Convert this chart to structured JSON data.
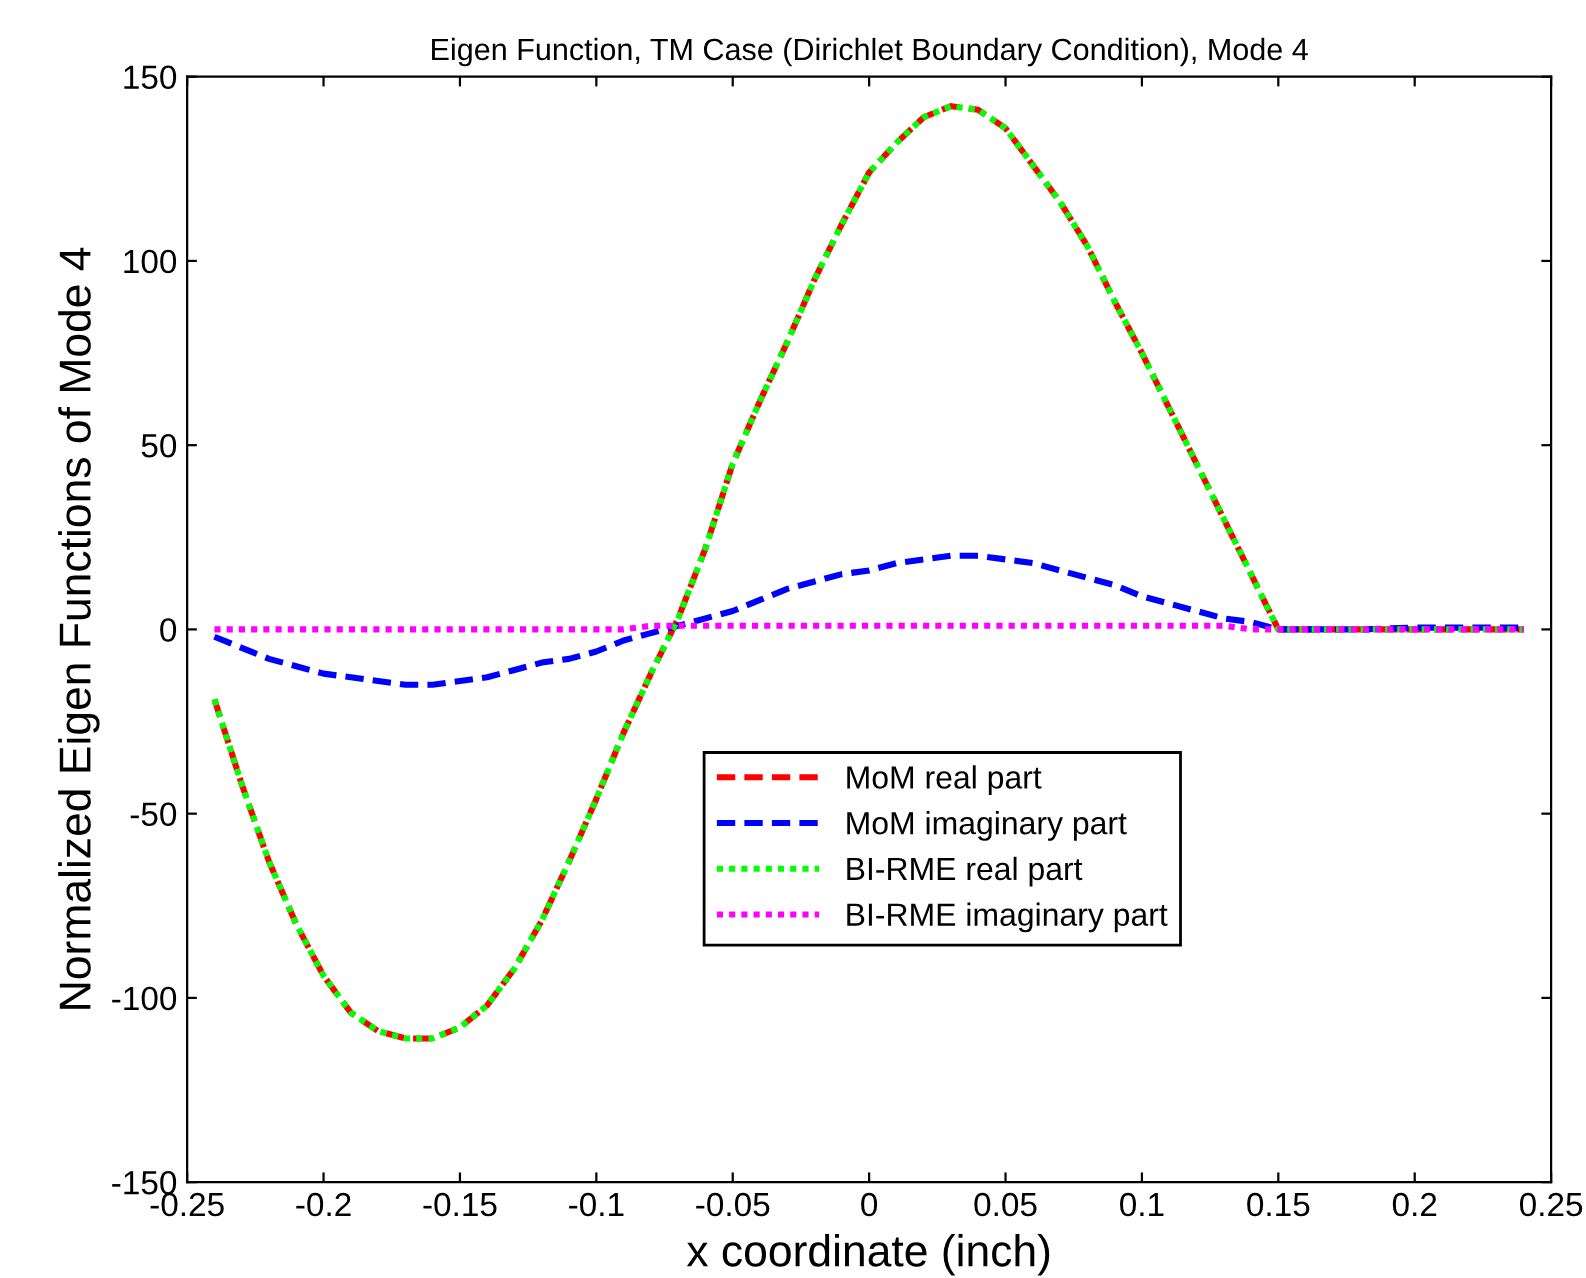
{
  "chart_data": {
    "type": "line",
    "title": "Eigen Function, TM Case (Dirichlet Boundary Condition), Mode 4",
    "xlabel": "x coordinate (inch)",
    "ylabel": "Normalized Eigen Functions of Mode 4",
    "xlim": [
      -0.25,
      0.25
    ],
    "xticks": [
      -0.25,
      -0.2,
      -0.15,
      -0.1,
      -0.05,
      0,
      0.05,
      0.1,
      0.15,
      0.2,
      0.25
    ],
    "ylim": [
      -150,
      150
    ],
    "yticks": [
      -150,
      -100,
      -50,
      0,
      50,
      100,
      150
    ],
    "grid": false,
    "legend": "bottom right",
    "marker": "none",
    "x": [
      -0.24,
      -0.23,
      -0.22,
      -0.21,
      -0.2,
      -0.19,
      -0.18,
      -0.17,
      -0.16,
      -0.15,
      -0.14,
      -0.13,
      -0.12,
      -0.11,
      -0.1,
      -0.09,
      -0.08,
      -0.07,
      -0.06,
      -0.05,
      -0.04,
      -0.03,
      -0.02,
      -0.01,
      0,
      0.01,
      0.02,
      0.03,
      0.04,
      0.05,
      0.06,
      0.07,
      0.08,
      0.09,
      0.1,
      0.11,
      0.12,
      0.13,
      0.14,
      0.15,
      0.16,
      0.18,
      0.2,
      0.22,
      0.24
    ],
    "series": [
      {
        "name": "MoM real part",
        "color": "#ff0000",
        "line_style": "dashed",
        "values": [
          -19,
          -42,
          -63,
          -80,
          -94,
          -104,
          -109,
          -111,
          -111,
          -108,
          -102,
          -92,
          -79,
          -63,
          -46,
          -28,
          -12,
          3,
          22,
          45,
          62,
          78,
          95,
          110,
          124,
          132,
          139,
          142,
          141,
          136,
          126,
          116,
          104,
          89,
          75,
          60,
          45,
          30,
          15,
          0,
          0,
          0,
          0,
          0,
          0
        ]
      },
      {
        "name": "MoM imaginary part",
        "color": "#0000ff",
        "line_style": "dashed",
        "values": [
          -2,
          -5,
          -8,
          -10,
          -12,
          -13,
          -14,
          -15,
          -15,
          -14,
          -13,
          -11,
          -9,
          -8,
          -6,
          -3,
          -1,
          1,
          3,
          5,
          8,
          11,
          13,
          15,
          16,
          18,
          19,
          20,
          20,
          19,
          18,
          16,
          14,
          12,
          9,
          7,
          5,
          3,
          2,
          0,
          0,
          0,
          0.5,
          0.5,
          0.5
        ]
      },
      {
        "name": "BI-RME real part",
        "color": "#00ff00",
        "line_style": "dotted",
        "values": [
          -19,
          -42,
          -63,
          -80,
          -94,
          -104,
          -109,
          -111,
          -111,
          -108,
          -102,
          -92,
          -79,
          -63,
          -46,
          -28,
          -12,
          3,
          22,
          45,
          62,
          78,
          95,
          110,
          124,
          132,
          139,
          142,
          141,
          136,
          126,
          116,
          104,
          89,
          75,
          60,
          45,
          30,
          15,
          0,
          0,
          0,
          0,
          0,
          0
        ]
      },
      {
        "name": "BI-RME imaginary part",
        "color": "#ff00ff",
        "line_style": "dotted",
        "values": [
          0,
          0,
          0,
          0,
          0,
          0,
          0,
          0,
          0,
          0,
          0,
          0,
          0,
          0,
          0,
          0,
          1,
          1,
          1,
          1,
          1,
          1,
          1,
          1,
          1,
          1,
          1,
          1,
          1,
          1,
          1,
          1,
          1,
          1,
          1,
          1,
          1,
          1,
          0,
          0,
          0,
          0,
          0,
          0,
          0
        ]
      }
    ]
  }
}
